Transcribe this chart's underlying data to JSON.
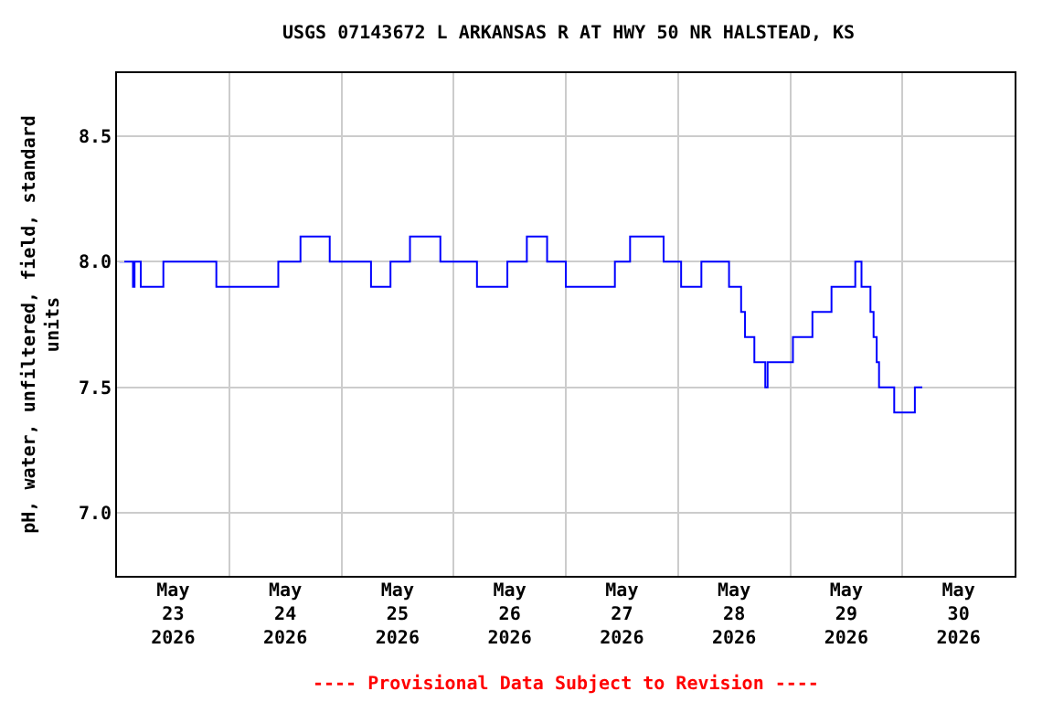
{
  "chart_data": {
    "type": "step",
    "title": "USGS 07143672 L ARKANSAS R AT HWY 50 NR HALSTEAD, KS",
    "ylabel": "pH, water, unfiltered, field, standard\nunits",
    "annotations": [
      "---- Provisional Data Subject to Revision ----"
    ],
    "x": [
      "2026-05-23T00:30",
      "2026-05-23T03:25",
      "2026-05-23T03:45",
      "2026-05-23T05:05",
      "2026-05-23T09:55",
      "2026-05-23T21:15",
      "2026-05-24T10:30",
      "2026-05-24T15:15",
      "2026-05-24T21:30",
      "2026-05-25T06:20",
      "2026-05-25T10:30",
      "2026-05-25T14:40",
      "2026-05-25T21:10",
      "2026-05-26T05:00",
      "2026-05-26T11:30",
      "2026-05-26T15:40",
      "2026-05-26T20:00",
      "2026-05-27T00:00",
      "2026-05-27T10:30",
      "2026-05-27T13:45",
      "2026-05-27T20:55",
      "2026-05-28T00:40",
      "2026-05-28T05:00",
      "2026-05-28T10:55",
      "2026-05-28T13:30",
      "2026-05-28T14:20",
      "2026-05-28T16:20",
      "2026-05-28T18:40",
      "2026-05-28T19:10",
      "2026-05-29T00:35",
      "2026-05-29T04:45",
      "2026-05-29T08:50",
      "2026-05-29T13:55",
      "2026-05-29T15:15",
      "2026-05-29T17:10",
      "2026-05-29T17:50",
      "2026-05-29T18:30",
      "2026-05-29T19:00",
      "2026-05-29T22:15",
      "2026-05-30T02:40",
      "2026-05-30T04:15"
    ],
    "series": [
      {
        "color": "#0000ff",
        "values": [
          8.0,
          7.9,
          8.0,
          7.9,
          8.0,
          7.9,
          8.0,
          8.1,
          8.0,
          7.9,
          8.0,
          8.1,
          8.0,
          7.9,
          8.0,
          8.1,
          8.0,
          7.9,
          8.0,
          8.1,
          8.0,
          7.9,
          8.0,
          7.9,
          7.8,
          7.7,
          7.6,
          7.5,
          7.6,
          7.7,
          7.8,
          7.9,
          8.0,
          7.9,
          7.8,
          7.7,
          7.6,
          7.5,
          7.4,
          7.5,
          7.5
        ]
      }
    ],
    "xlim": [
      "2026-05-23",
      "2026-05-31"
    ],
    "xticks": [
      {
        "value": "2026-05-23",
        "label": null
      },
      {
        "value": "2026-05-24",
        "label": null
      },
      {
        "value": "2026-05-25",
        "label": null
      },
      {
        "value": "2026-05-26",
        "label": null
      },
      {
        "value": "2026-05-27",
        "label": null
      },
      {
        "value": "2026-05-28",
        "label": null
      },
      {
        "value": "2026-05-29",
        "label": null
      },
      {
        "value": "2026-05-30",
        "label": null
      },
      {
        "value": "2026-05-31",
        "label": null
      },
      {
        "value": "2026-05-23T12:00",
        "label": "May\n23\n2026"
      },
      {
        "value": "2026-05-24T12:00",
        "label": "May\n24\n2026"
      },
      {
        "value": "2026-05-25T12:00",
        "label": "May\n25\n2026"
      },
      {
        "value": "2026-05-26T12:00",
        "label": "May\n26\n2026"
      },
      {
        "value": "2026-05-27T12:00",
        "label": "May\n27\n2026"
      },
      {
        "value": "2026-05-28T12:00",
        "label": "May\n28\n2026"
      },
      {
        "value": "2026-05-29T12:00",
        "label": "May\n29\n2026"
      },
      {
        "value": "2026-05-30T12:00",
        "label": "May\n30\n2026"
      }
    ],
    "ylim": [
      6.75,
      8.75
    ],
    "yticks": [
      {
        "value": 7.0,
        "label": "7.0"
      },
      {
        "value": 7.5,
        "label": "7.5"
      },
      {
        "value": 8.0,
        "label": "8.0"
      },
      {
        "value": 8.5,
        "label": "8.5"
      }
    ],
    "grid": true,
    "line_style": "solid",
    "marker": "none"
  }
}
